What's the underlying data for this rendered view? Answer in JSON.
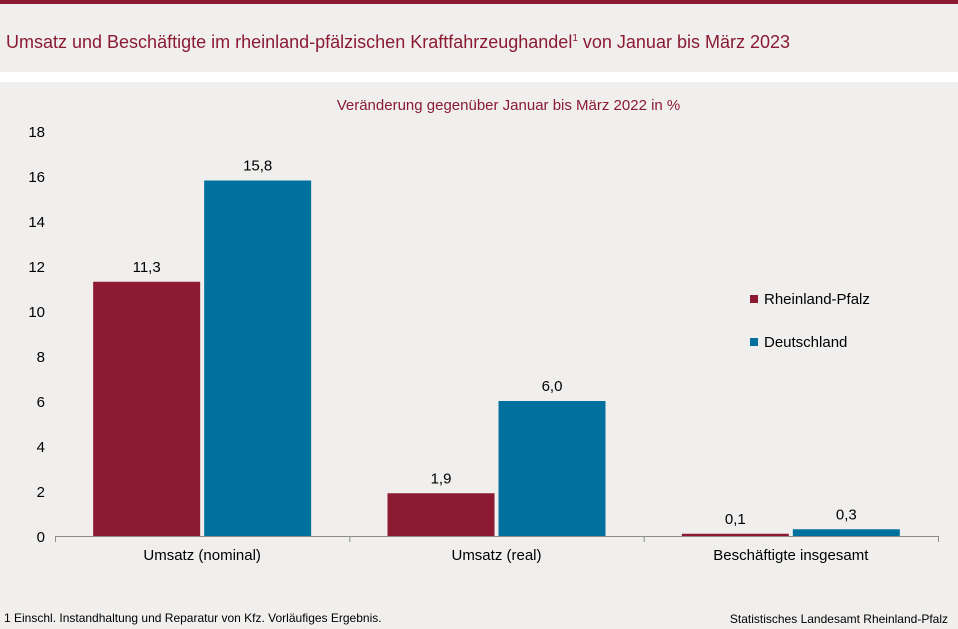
{
  "header": {
    "title_main": "Umsatz und Beschäftigte im rheinland-pfälzischen Kraftfahrzeughandel",
    "title_sup": "1",
    "title_tail": " von Januar bis März 2023"
  },
  "chart_data": {
    "type": "bar",
    "subtitle": "Veränderung gegenüber Januar bis März 2022 in %",
    "categories": [
      "Umsatz (nominal)",
      "Umsatz (real)",
      "Beschäftigte insgesamt"
    ],
    "series": [
      {
        "name": "Rheinland-Pfalz",
        "values": [
          11.3,
          1.9,
          0.1
        ],
        "labels": [
          "11,3",
          "1,9",
          "0,1"
        ],
        "color": "#8b1a32"
      },
      {
        "name": "Deutschland",
        "values": [
          15.8,
          6.0,
          0.3
        ],
        "labels": [
          "15,8",
          "6,0",
          "0,3"
        ],
        "color": "#00709f"
      }
    ],
    "ylim": [
      0,
      18
    ],
    "yticks": [
      0,
      2,
      4,
      6,
      8,
      10,
      12,
      14,
      16,
      18
    ],
    "grid": false,
    "legend": "right"
  },
  "footer": {
    "footnote": "1 Einschl. Instandhaltung und Reparatur von Kfz. Vorläufiges Ergebnis.",
    "source": "Statistisches Landesamt Rheinland-Pfalz"
  }
}
